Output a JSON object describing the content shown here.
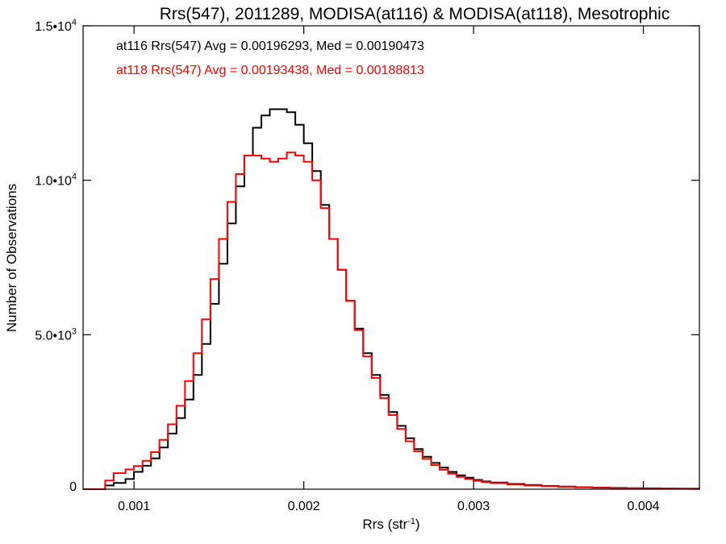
{
  "chart_data": {
    "type": "line",
    "title": "Rrs(547), 2011289, MODISA(at116) & MODISA(at118), Mesotrophic",
    "xlabel": "Rrs (str",
    "xlabel_sup": "-1",
    "xlabel_close": ")",
    "ylabel": "Number of Observations",
    "xlim": [
      0.0007,
      0.00433
    ],
    "ylim": [
      0,
      15000
    ],
    "xticks": [
      {
        "value": 0.001,
        "label": "0.001"
      },
      {
        "value": 0.002,
        "label": "0.002"
      },
      {
        "value": 0.003,
        "label": "0.003"
      },
      {
        "value": 0.004,
        "label": "0.004"
      }
    ],
    "yticks": [
      {
        "value": 0,
        "base": "0",
        "exp": ""
      },
      {
        "value": 5000,
        "base": "5.0•10",
        "exp": "3"
      },
      {
        "value": 10000,
        "base": "1.0•10",
        "exp": "4"
      },
      {
        "value": 15000,
        "base": "1.5•10",
        "exp": "4"
      }
    ],
    "annotations": [
      {
        "text": "at116 Rrs(547) Avg = 0.00196293, Med = 0.00190473",
        "color": "#000000"
      },
      {
        "text": "at118 Rrs(547) Avg = 0.00193438, Med = 0.00188813",
        "color": "#ff0000"
      }
    ],
    "series": [
      {
        "name": "at116",
        "color": "#000000",
        "x": [
          0.0007,
          0.00075,
          0.0008,
          0.00083,
          0.00088,
          0.00095,
          0.001,
          0.00105,
          0.0011,
          0.00115,
          0.0012,
          0.00125,
          0.0013,
          0.00135,
          0.0014,
          0.00145,
          0.0015,
          0.00155,
          0.0016,
          0.00165,
          0.0017,
          0.00175,
          0.0018,
          0.00185,
          0.0019,
          0.00195,
          0.002,
          0.00205,
          0.0021,
          0.00215,
          0.0022,
          0.00225,
          0.0023,
          0.00235,
          0.0024,
          0.00245,
          0.0025,
          0.00255,
          0.0026,
          0.00265,
          0.0027,
          0.00275,
          0.0028,
          0.00285,
          0.0029,
          0.00295,
          0.003,
          0.00305,
          0.0031,
          0.0032,
          0.0033,
          0.0034,
          0.0035,
          0.0036,
          0.0037,
          0.0038,
          0.0039,
          0.004,
          0.0041,
          0.0042,
          0.00433
        ],
        "y": [
          0,
          0,
          0,
          120,
          200,
          330,
          560,
          760,
          1000,
          1350,
          1800,
          2300,
          2900,
          3700,
          4700,
          6000,
          7300,
          8600,
          9800,
          10800,
          11700,
          12100,
          12300,
          12300,
          12200,
          11800,
          11200,
          10300,
          9200,
          8100,
          7100,
          6100,
          5200,
          4400,
          3700,
          3050,
          2500,
          2050,
          1650,
          1300,
          1050,
          850,
          700,
          560,
          450,
          370,
          300,
          250,
          215,
          170,
          135,
          105,
          85,
          65,
          52,
          42,
          35,
          28,
          24,
          18,
          12
        ]
      },
      {
        "name": "at118",
        "color": "#ff0000",
        "x": [
          0.0007,
          0.00075,
          0.0008,
          0.00083,
          0.00088,
          0.00095,
          0.001,
          0.00105,
          0.0011,
          0.00115,
          0.0012,
          0.00125,
          0.0013,
          0.00135,
          0.0014,
          0.00145,
          0.0015,
          0.00155,
          0.0016,
          0.00165,
          0.0017,
          0.00175,
          0.0018,
          0.00185,
          0.0019,
          0.00195,
          0.002,
          0.00205,
          0.0021,
          0.00215,
          0.0022,
          0.00225,
          0.0023,
          0.00235,
          0.0024,
          0.00245,
          0.0025,
          0.00255,
          0.0026,
          0.00265,
          0.0027,
          0.00275,
          0.0028,
          0.00285,
          0.0029,
          0.00295,
          0.003,
          0.00305,
          0.0031,
          0.0032,
          0.0033,
          0.0034,
          0.0035,
          0.0036,
          0.0037,
          0.0038,
          0.0039,
          0.004,
          0.0041,
          0.0042,
          0.00433
        ],
        "y": [
          0,
          0,
          0,
          280,
          520,
          640,
          750,
          920,
          1200,
          1600,
          2100,
          2700,
          3500,
          4400,
          5500,
          6800,
          8100,
          9300,
          10200,
          10800,
          10800,
          10700,
          10600,
          10700,
          10900,
          10800,
          10600,
          10000,
          9100,
          8100,
          7100,
          6100,
          5150,
          4300,
          3600,
          2950,
          2400,
          1950,
          1550,
          1230,
          980,
          780,
          630,
          500,
          400,
          330,
          270,
          230,
          195,
          150,
          120,
          95,
          75,
          58,
          45,
          35,
          28,
          22,
          18,
          14,
          10
        ]
      }
    ],
    "grid": false,
    "legend": "none"
  }
}
